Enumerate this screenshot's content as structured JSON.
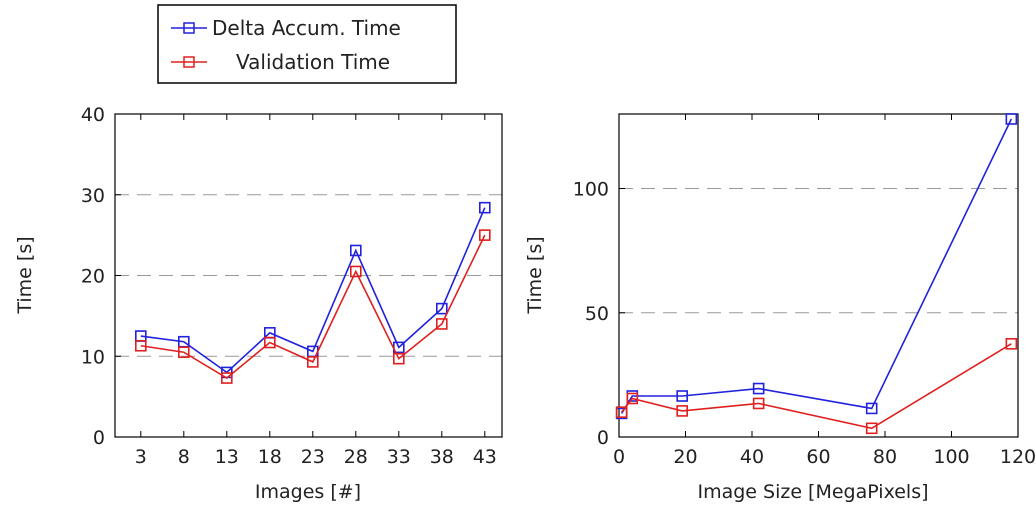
{
  "colors": {
    "series_1": "#2222dd",
    "series_2": "#e02020",
    "grid": "#999999",
    "axis": "#000000"
  },
  "legend": {
    "placement": "top-left",
    "entries": [
      "Delta Accum. Time",
      "Validation Time"
    ]
  },
  "chart_data": [
    {
      "type": "line",
      "xlabel": "Images [#]",
      "ylabel": "Time  [s]",
      "x": [
        3,
        8,
        13,
        18,
        23,
        28,
        33,
        38,
        43
      ],
      "xticks": [
        "3",
        "8",
        "13",
        "18",
        "23",
        "28",
        "33",
        "38",
        "43"
      ],
      "xlim": [
        0,
        45
      ],
      "ylim": [
        0,
        40
      ],
      "yticks": [
        0,
        10,
        20,
        30,
        40
      ],
      "grid": "horizontal dashed",
      "series": [
        {
          "name": "Delta Accum. Time",
          "values": [
            12.5,
            11.8,
            8.0,
            12.9,
            10.6,
            23.1,
            11.1,
            15.9,
            28.4
          ]
        },
        {
          "name": "Validation Time",
          "values": [
            11.3,
            10.5,
            7.3,
            11.7,
            9.3,
            20.5,
            9.7,
            14.0,
            25.0
          ]
        }
      ]
    },
    {
      "type": "line",
      "xlabel": "Image Size [MegaPixels]",
      "ylabel": "Time  [s]",
      "xlim": [
        0,
        120
      ],
      "xticks": [
        0,
        20,
        40,
        60,
        80,
        100,
        120
      ],
      "ylim": [
        0,
        130
      ],
      "yticks": [
        0,
        50,
        100
      ],
      "grid": "horizontal dashed",
      "series": [
        {
          "name": "Delta Accum. Time",
          "x": [
            0.8,
            4,
            19,
            42,
            76,
            118
          ],
          "values": [
            9.5,
            16.5,
            16.5,
            19.5,
            11.5,
            128
          ]
        },
        {
          "name": "Validation Time",
          "x": [
            0.8,
            4,
            19,
            42,
            76,
            118
          ],
          "values": [
            10,
            15.5,
            10.5,
            13.5,
            3.5,
            37.5
          ]
        }
      ]
    }
  ]
}
